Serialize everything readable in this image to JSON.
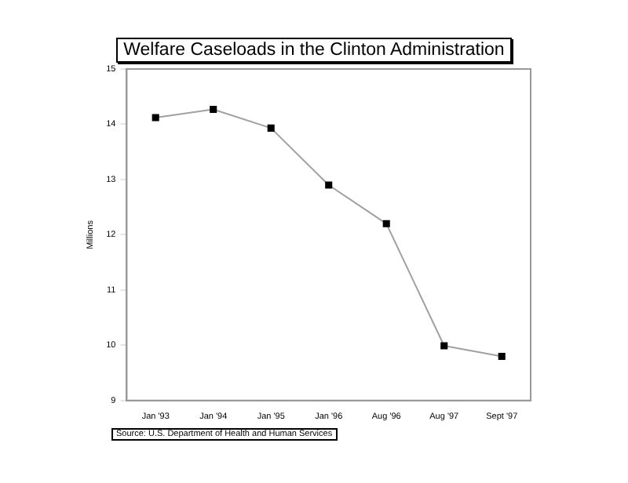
{
  "chart_data": {
    "type": "line",
    "title": "Welfare Caseloads in the Clinton Administration",
    "ylabel": "Millions",
    "categories": [
      "Jan '93",
      "Jan '94",
      "Jan '95",
      "Jan '96",
      "Aug '96",
      "Aug '97",
      "Sept '97"
    ],
    "series": [
      {
        "color": "#a0a0a0",
        "values": [
          14.12,
          14.27,
          13.93,
          12.9,
          12.2,
          9.99,
          9.8
        ]
      }
    ],
    "ylim": [
      9,
      15
    ],
    "yticks": [
      9,
      10,
      11,
      12,
      13,
      14,
      15
    ],
    "grid": false,
    "legend": false,
    "marker": "square",
    "line_style": "solid",
    "annotations": [
      "Source: U.S. Department of Health and Human Services"
    ]
  }
}
